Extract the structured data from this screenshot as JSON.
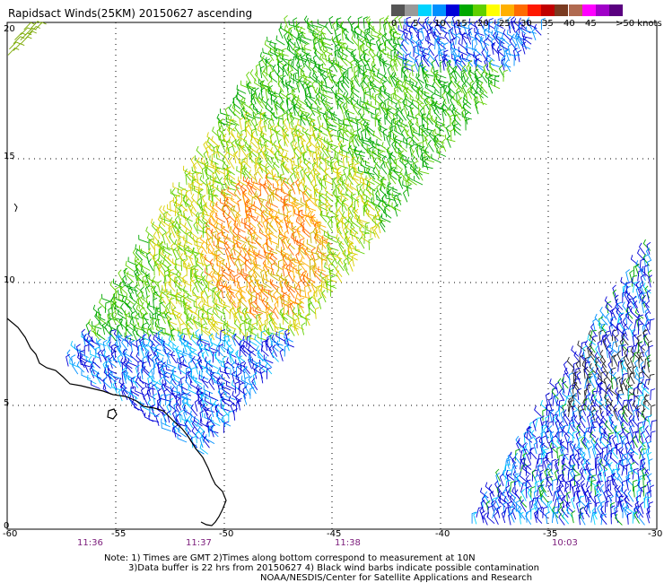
{
  "title": "Rapidsact Winds(25KM) 20150627 ascending",
  "legend": {
    "labels": [
      "0",
      "5",
      "10",
      "15",
      "20",
      "25",
      "30",
      "35",
      "40",
      "45",
      ">50 knots"
    ],
    "colors": [
      "#555555",
      "#999999",
      "#00d4ff",
      "#0090ff",
      "#0000d8",
      "#00a800",
      "#60d000",
      "#ffff00",
      "#ffb000",
      "#ff6a00",
      "#ff1800",
      "#c00000",
      "#7a3a20",
      "#b06a50",
      "#ff00ff",
      "#a000c8",
      "#5a0080"
    ]
  },
  "axes": {
    "x_ticks": [
      "-60",
      "-55",
      "-50",
      "-45",
      "-40",
      "-35",
      "-30"
    ],
    "y_ticks": [
      "0",
      "5",
      "10",
      "15",
      "20"
    ]
  },
  "pass_times": [
    "11:36",
    "11:37",
    "11:38",
    "10:03"
  ],
  "notes": [
    "Note: 1) Times are GMT 2)Times along bottom correspond to measurement at 10N",
    "3)Data buffer is 22 hrs from 20150627 4) Black wind barbs indicate possible contamination",
    "NOAA/NESDIS/Center for Satellite Applications and Research"
  ]
}
